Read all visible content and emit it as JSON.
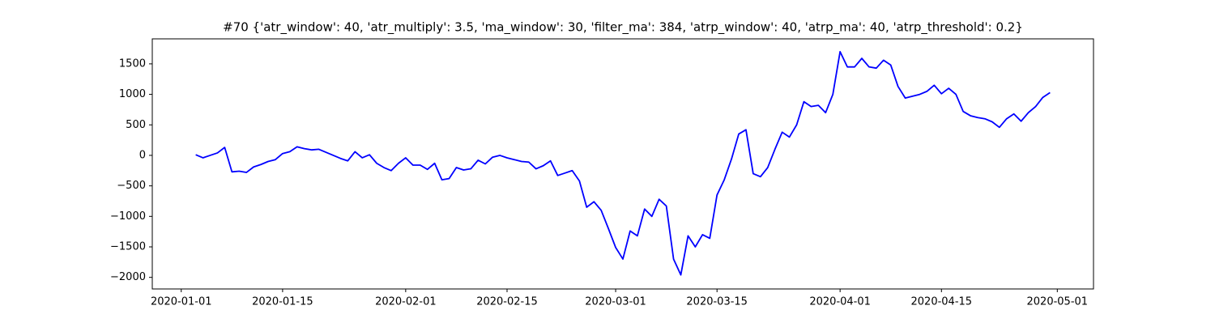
{
  "chart_data": {
    "type": "line",
    "title": "#70 {'atr_window': 40, 'atr_multiply': 3.5, 'ma_window': 30, 'filter_ma': 384, 'atrp_window': 40, 'atrp_ma': 40, 'atrp_threshold': 0.2}",
    "x": [
      "2020-01-03",
      "2020-01-04",
      "2020-01-05",
      "2020-01-06",
      "2020-01-07",
      "2020-01-08",
      "2020-01-09",
      "2020-01-10",
      "2020-01-11",
      "2020-01-12",
      "2020-01-13",
      "2020-01-14",
      "2020-01-15",
      "2020-01-16",
      "2020-01-17",
      "2020-01-18",
      "2020-01-19",
      "2020-01-20",
      "2020-01-21",
      "2020-01-22",
      "2020-01-23",
      "2020-01-24",
      "2020-01-25",
      "2020-01-26",
      "2020-01-27",
      "2020-01-28",
      "2020-01-29",
      "2020-01-30",
      "2020-01-31",
      "2020-02-01",
      "2020-02-02",
      "2020-02-03",
      "2020-02-04",
      "2020-02-05",
      "2020-02-06",
      "2020-02-07",
      "2020-02-08",
      "2020-02-09",
      "2020-02-10",
      "2020-02-11",
      "2020-02-12",
      "2020-02-13",
      "2020-02-14",
      "2020-02-15",
      "2020-02-16",
      "2020-02-17",
      "2020-02-18",
      "2020-02-19",
      "2020-02-20",
      "2020-02-21",
      "2020-02-22",
      "2020-02-23",
      "2020-02-24",
      "2020-02-25",
      "2020-02-26",
      "2020-02-27",
      "2020-02-28",
      "2020-02-29",
      "2020-03-01",
      "2020-03-02",
      "2020-03-03",
      "2020-03-04",
      "2020-03-05",
      "2020-03-06",
      "2020-03-07",
      "2020-03-08",
      "2020-03-09",
      "2020-03-10",
      "2020-03-11",
      "2020-03-12",
      "2020-03-13",
      "2020-03-14",
      "2020-03-15",
      "2020-03-16",
      "2020-03-17",
      "2020-03-18",
      "2020-03-19",
      "2020-03-20",
      "2020-03-21",
      "2020-03-22",
      "2020-03-23",
      "2020-03-24",
      "2020-03-25",
      "2020-03-26",
      "2020-03-27",
      "2020-03-28",
      "2020-03-29",
      "2020-03-30",
      "2020-03-31",
      "2020-04-01",
      "2020-04-02",
      "2020-04-03",
      "2020-04-04",
      "2020-04-05",
      "2020-04-06",
      "2020-04-07",
      "2020-04-08",
      "2020-04-09",
      "2020-04-10",
      "2020-04-11",
      "2020-04-12",
      "2020-04-13",
      "2020-04-14",
      "2020-04-15",
      "2020-04-16",
      "2020-04-17",
      "2020-04-18",
      "2020-04-19",
      "2020-04-20",
      "2020-04-21",
      "2020-04-22",
      "2020-04-23",
      "2020-04-24",
      "2020-04-25",
      "2020-04-26",
      "2020-04-27",
      "2020-04-28",
      "2020-04-29",
      "2020-04-30"
    ],
    "series": [
      {
        "color": "#0000ff",
        "values": [
          10,
          -40,
          0,
          40,
          130,
          -270,
          -260,
          -280,
          -190,
          -150,
          -100,
          -70,
          30,
          60,
          140,
          110,
          90,
          100,
          50,
          0,
          -50,
          -90,
          60,
          -40,
          10,
          -130,
          -200,
          -250,
          -130,
          -40,
          -160,
          -160,
          -230,
          -130,
          -400,
          -380,
          -200,
          -240,
          -220,
          -80,
          -140,
          -30,
          0,
          -40,
          -70,
          -100,
          -110,
          -220,
          -170,
          -90,
          -330,
          -290,
          -250,
          -420,
          -850,
          -760,
          -900,
          -1200,
          -1510,
          -1700,
          -1240,
          -1320,
          -880,
          -1000,
          -720,
          -830,
          -1700,
          -1960,
          -1320,
          -1500,
          -1300,
          -1360,
          -650,
          -400,
          -60,
          350,
          420,
          -300,
          -350,
          -200,
          100,
          380,
          300,
          500,
          880,
          800,
          820,
          700,
          1000,
          1700,
          1450,
          1450,
          1590,
          1450,
          1430,
          1560,
          1480,
          1130,
          940,
          970,
          1000,
          1050,
          1150,
          1010,
          1100,
          1000,
          720,
          650,
          620,
          600,
          550,
          460,
          600,
          680,
          560,
          700,
          800,
          950,
          1030
        ]
      }
    ],
    "xlim": [
      "2019-12-28",
      "2020-05-06"
    ],
    "xticks": [
      "2020-01-01",
      "2020-01-15",
      "2020-02-01",
      "2020-02-15",
      "2020-03-01",
      "2020-03-15",
      "2020-04-01",
      "2020-04-15",
      "2020-05-01"
    ],
    "ylim": [
      -2190,
      1910
    ],
    "yticks": [
      {
        "value": -2000,
        "label": "−2000"
      },
      {
        "value": -1500,
        "label": "−1500"
      },
      {
        "value": -1000,
        "label": "−1000"
      },
      {
        "value": -500,
        "label": "−500"
      },
      0,
      500,
      1000,
      1500
    ]
  }
}
